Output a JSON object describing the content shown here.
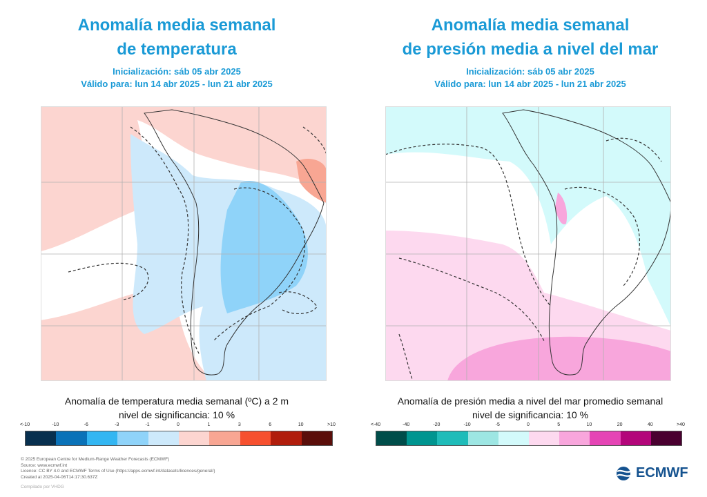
{
  "left_panel": {
    "title_line1": "Anomalía media semanal",
    "title_line2": "de temperatura",
    "init": "Inicialización: sáb 05 abr 2025",
    "valid": "Válido para: lun 14 abr 2025 - lun 21 abr 2025",
    "colorbar_title": "Anomalía de temperatura media semanal (ºC) a 2 m",
    "significance": "nivel de significancia: 10 %",
    "colors": [
      "#08304f",
      "#0a72b8",
      "#33b6f2",
      "#8fd3f9",
      "#cde9fb",
      "#fcd5d0",
      "#f8a693",
      "#f6502f",
      "#b01d0c",
      "#5a0e0a"
    ],
    "ticks": [
      "<-10",
      "-10",
      "-6",
      "-3",
      "-1",
      "0",
      "1",
      "3",
      "6",
      "10",
      ">10"
    ]
  },
  "right_panel": {
    "title_line1": "Anomalía media semanal",
    "title_line2": "de presión media a nivel del mar",
    "init": "Inicialización: sáb 05 abr 2025",
    "valid": "Válido para: lun 14 abr 2025 - lun 21 abr 2025",
    "colorbar_title": "Anomalía de presión media a nivel del mar promedio semanal",
    "significance": "nivel de significancia: 10 %",
    "colors": [
      "#004d4a",
      "#009590",
      "#1fbcb9",
      "#9de6e3",
      "#d3fafb",
      "#fdd9ef",
      "#f8a6dc",
      "#e545b5",
      "#b3067a",
      "#4a0030"
    ],
    "ticks": [
      "<-40",
      "-40",
      "-20",
      "-10",
      "-5",
      "0",
      "5",
      "10",
      "20",
      "40",
      ">40"
    ]
  },
  "footer": {
    "line1": "© 2025 European Centre for Medium-Range Weather Forecasts (ECMWF)",
    "line2": "Source: www.ecmwf.int",
    "line3": "Licence: CC BY 4.0 and ECMWF Terms of Use (https://apps.ecmwf.int/datasets/licences/general/)",
    "line4": "Created at 2025-04-06T14:17:30.637Z",
    "compiled": "Compilado por VHDG"
  },
  "logo_text": "ECMWF",
  "icons": [
    "ecmwf-logo-icon"
  ]
}
